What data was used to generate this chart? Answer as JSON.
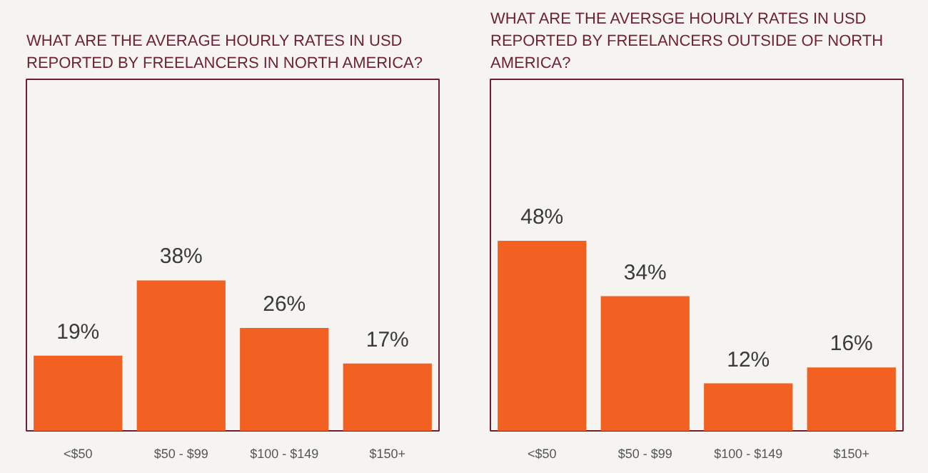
{
  "chart_data": [
    {
      "type": "bar",
      "title": "WHAT ARE THE AVERAGE HOURLY RATES IN USD REPORTED BY FREELANCERS IN NORTH AMERICA?",
      "categories": [
        "<$50",
        "$50 - $99",
        "$100 - $149",
        "$150+"
      ],
      "values": [
        19,
        38,
        26,
        17
      ],
      "value_labels": [
        "19%",
        "38%",
        "26%",
        "17%"
      ],
      "color": "#f26122",
      "grid": false
    },
    {
      "type": "bar",
      "title": "WHAT ARE THE AVERSGE HOURLY RATES IN USD REPORTED BY FREELANCERS OUTSIDE OF NORTH AMERICA?",
      "categories": [
        "<$50",
        "$50 - $99",
        "$100 - $149",
        "$150+"
      ],
      "values": [
        48,
        34,
        12,
        16
      ],
      "value_labels": [
        "48%",
        "34%",
        "12%",
        "16%"
      ],
      "color": "#f26122",
      "grid": false
    }
  ]
}
